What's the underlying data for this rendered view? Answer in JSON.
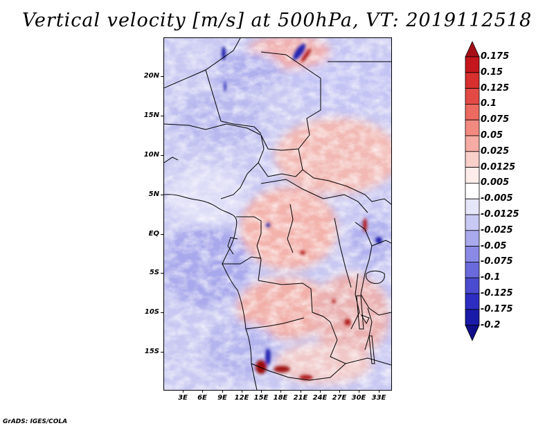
{
  "title": "Vertical velocity [m/s] at 500hPa, VT: 2019112518",
  "map": {
    "variable": "Vertical velocity",
    "units": "m/s",
    "level": "500hPa",
    "valid_time": "2019112518",
    "lat_ticks": [
      "20N",
      "15N",
      "10N",
      "5N",
      "EQ",
      "5S",
      "10S",
      "15S"
    ],
    "lon_ticks": [
      "3E",
      "6E",
      "9E",
      "12E",
      "15E",
      "18E",
      "21E",
      "24E",
      "27E",
      "30E",
      "33E"
    ],
    "lat_range": [
      -20,
      25
    ],
    "lon_range": [
      0,
      35
    ],
    "colors": {
      "strong_positive": "#a50f15",
      "positive": "#f4a7a0",
      "neutral": "#ffffff",
      "negative": "#a9a9f0",
      "strong_negative": "#1c1cc0",
      "coastline": "#000000"
    }
  },
  "colorbar": {
    "labels": [
      "0.175",
      "0.15",
      "0.125",
      "0.1",
      "0.075",
      "0.05",
      "0.025",
      "0.0125",
      "0.005",
      "-0.005",
      "-0.0125",
      "-0.025",
      "-0.05",
      "-0.075",
      "-0.1",
      "-0.125",
      "-0.175",
      "-0.2"
    ],
    "colors": [
      "#a50f15",
      "#c4161c",
      "#d7302e",
      "#e34a45",
      "#ec6a60",
      "#f28a80",
      "#f6aca4",
      "#f9cfca",
      "#fdecea",
      "#ffffff",
      "#e6e6fb",
      "#c9c9f5",
      "#a9a9ee",
      "#8a8ae6",
      "#6a6adc",
      "#4b4bd0",
      "#2d2dc2",
      "#1a1aa8",
      "#100e88"
    ]
  },
  "footer": "GrADS: IGES/COLA"
}
